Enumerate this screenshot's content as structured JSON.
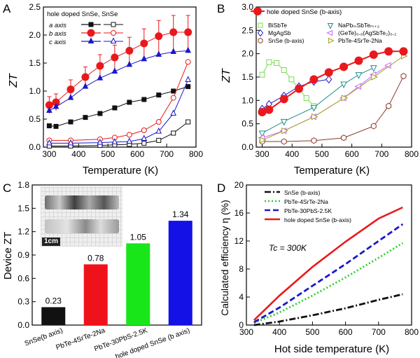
{
  "panels": {
    "A": {
      "letter": "A",
      "legend_title": "hole doped SnSe, SnSe",
      "legend_rows": [
        "a axis",
        "b axis",
        "c axis"
      ],
      "xlabel": "Temperature (K)",
      "ylabel": "ZT",
      "xticks": [
        "300",
        "400",
        "500",
        "600",
        "700",
        "800"
      ],
      "yticks": [
        "0.0",
        "0.5",
        "1.0",
        "1.5",
        "2.0",
        "2.5"
      ]
    },
    "B": {
      "letter": "B",
      "xlabel": "Temperature (K)",
      "ylabel": "ZT",
      "xticks": [
        "300",
        "400",
        "500",
        "600",
        "700",
        "800"
      ],
      "yticks": [
        "0.0",
        "0.5",
        "1.0",
        "1.5",
        "2.0",
        "2.5",
        "3.0"
      ],
      "legend": {
        "main": "hole doped SnSe (b-axis)",
        "items": [
          "BiSbTe",
          "NaPbₘSbTeₘ₊₂",
          "MgAgSb",
          "(GeTe)₀.₈(AgSbTe₂)₀.₂",
          "SnSe (b-axis)",
          "PbTe-4SrTe-2Na"
        ]
      }
    },
    "C": {
      "letter": "C",
      "ylabel": "Device ZT",
      "photo_scale": "1cm",
      "yticks": [
        "0.0",
        "0.3",
        "0.6",
        "0.9",
        "1.2",
        "1.5",
        "1.8"
      ]
    },
    "D": {
      "letter": "D",
      "xlabel": "Hot side temperature (K)",
      "ylabel": "Calculated efficiency η (%)",
      "annotation": "Tc = 300K",
      "xticks": [
        "300",
        "400",
        "500",
        "600",
        "700",
        "800"
      ],
      "yticks": [
        "0",
        "4",
        "8",
        "12",
        "16",
        "20"
      ]
    }
  },
  "colors": {
    "hole_doped_b": "#e8191c",
    "black": "#111111",
    "blue": "#1a18c8",
    "green": "#2bd12b",
    "bar_red": "#f0121a",
    "bar_green": "#19e619",
    "bar_blue": "#1411e6",
    "violet": "#cc66ff",
    "brown": "#8b3a2b",
    "olive": "#a0a020",
    "lightgreen": "#77dd55"
  },
  "chart_data": [
    {
      "panel": "A",
      "type": "line",
      "xlim": [
        280,
        800
      ],
      "ylim": [
        0,
        2.5
      ],
      "series": [
        {
          "name": "a axis (hole doped)",
          "marker": "filled-square",
          "color": "#111111",
          "x": [
            300,
            323,
            373,
            423,
            473,
            523,
            573,
            623,
            673,
            723,
            773
          ],
          "y": [
            0.38,
            0.37,
            0.45,
            0.53,
            0.6,
            0.7,
            0.8,
            0.85,
            0.93,
            1.0,
            1.08
          ]
        },
        {
          "name": "b axis (hole doped)",
          "marker": "filled-circle",
          "color": "#e8191c",
          "x": [
            300,
            323,
            373,
            423,
            473,
            523,
            573,
            623,
            673,
            723,
            773
          ],
          "y": [
            0.75,
            0.8,
            1.03,
            1.25,
            1.45,
            1.6,
            1.72,
            1.85,
            1.98,
            2.05,
            2.05
          ],
          "err": [
            0.15,
            0.15,
            0.17,
            0.18,
            0.2,
            0.22,
            0.24,
            0.26,
            0.28,
            0.3,
            0.3
          ]
        },
        {
          "name": "c axis (hole doped)",
          "marker": "filled-triangle",
          "color": "#1a18c8",
          "x": [
            300,
            323,
            373,
            423,
            473,
            523,
            573,
            623,
            673,
            723,
            773
          ],
          "y": [
            0.65,
            0.72,
            0.88,
            1.08,
            1.23,
            1.35,
            1.47,
            1.57,
            1.65,
            1.7,
            1.72
          ]
        },
        {
          "name": "a axis (SnSe)",
          "marker": "open-square",
          "color": "#111111",
          "x": [
            300,
            373,
            473,
            523,
            573,
            623,
            673,
            723,
            773
          ],
          "y": [
            0.02,
            0.02,
            0.03,
            0.04,
            0.05,
            0.07,
            0.12,
            0.25,
            0.45
          ]
        },
        {
          "name": "b axis (SnSe)",
          "marker": "open-circle",
          "color": "#e8191c",
          "x": [
            300,
            373,
            473,
            523,
            573,
            623,
            673,
            723,
            773
          ],
          "y": [
            0.12,
            0.12,
            0.14,
            0.17,
            0.22,
            0.3,
            0.45,
            0.88,
            1.52
          ]
        },
        {
          "name": "c axis (SnSe)",
          "marker": "open-triangle",
          "color": "#1a18c8",
          "x": [
            300,
            373,
            473,
            523,
            573,
            623,
            673,
            723,
            773
          ],
          "y": [
            0.07,
            0.07,
            0.08,
            0.09,
            0.1,
            0.15,
            0.28,
            0.6,
            1.2
          ]
        }
      ]
    },
    {
      "panel": "B",
      "type": "line",
      "xlim": [
        280,
        800
      ],
      "ylim": [
        0,
        3.0
      ],
      "series": [
        {
          "name": "hole doped SnSe (b-axis)",
          "marker": "filled-circle",
          "color": "#e8191c",
          "x": [
            300,
            323,
            373,
            423,
            473,
            523,
            573,
            623,
            673,
            723,
            773
          ],
          "y": [
            0.75,
            0.8,
            1.03,
            1.25,
            1.45,
            1.6,
            1.72,
            1.85,
            1.98,
            2.05,
            2.05
          ]
        },
        {
          "name": "BiSbTe",
          "marker": "open-square",
          "color": "#77dd55",
          "x": [
            300,
            323,
            348,
            373,
            398,
            423,
            448,
            473
          ],
          "y": [
            1.55,
            1.82,
            1.8,
            1.65,
            1.45,
            1.25,
            1.05,
            0.88
          ]
        },
        {
          "name": "NaPbmSbTem+2",
          "marker": "open-triangle-down",
          "color": "#1c8c8c",
          "x": [
            300,
            373,
            473,
            573,
            623,
            673
          ],
          "y": [
            0.3,
            0.55,
            0.85,
            1.35,
            1.55,
            1.7
          ]
        },
        {
          "name": "MgAgSb",
          "marker": "open-diamond",
          "color": "#1a18c8",
          "x": [
            300,
            323,
            373,
            423,
            473,
            523
          ],
          "y": [
            0.82,
            0.92,
            1.1,
            1.3,
            1.4,
            1.45
          ]
        },
        {
          "name": "(GeTe)0.8(AgSbTe2)0.2",
          "marker": "open-triangle-left",
          "color": "#cc66ff",
          "x": [
            300,
            373,
            473,
            573,
            623,
            673,
            723
          ],
          "y": [
            0.2,
            0.35,
            0.65,
            1.05,
            1.3,
            1.55,
            1.75
          ]
        },
        {
          "name": "SnSe (b-axis)",
          "marker": "open-hexagon",
          "color": "#8b3a2b",
          "x": [
            300,
            373,
            473,
            573,
            673,
            723,
            773
          ],
          "y": [
            0.12,
            0.12,
            0.14,
            0.2,
            0.45,
            0.88,
            1.52
          ]
        },
        {
          "name": "PbTe-4SrTe-2Na",
          "marker": "open-triangle-right",
          "color": "#a0a020",
          "x": [
            300,
            373,
            473,
            573,
            673,
            773
          ],
          "y": [
            0.15,
            0.35,
            0.65,
            1.05,
            1.5,
            1.95
          ]
        }
      ]
    },
    {
      "panel": "C",
      "type": "bar",
      "ylim": [
        0,
        1.8
      ],
      "categories": [
        "SnSe(b axis)",
        "PbTe-4SrTe-2Na",
        "PbTe-30PbS-2.5K",
        "hole doped SnSe (b axis)"
      ],
      "values": [
        0.23,
        0.78,
        1.05,
        1.34
      ],
      "value_labels": [
        "0.23",
        "0.78",
        "1.05",
        "1.34"
      ],
      "colors": [
        "#111111",
        "#f0121a",
        "#19e619",
        "#1411e6"
      ]
    },
    {
      "panel": "D",
      "type": "line",
      "xlim": [
        300,
        800
      ],
      "ylim": [
        0,
        20
      ],
      "series": [
        {
          "name": "SnSe (b-axis)",
          "style": "dashdot",
          "color": "#111111",
          "x": [
            323,
            400,
            500,
            600,
            700,
            773
          ],
          "y": [
            0.0,
            0.5,
            1.4,
            2.4,
            3.6,
            4.4
          ]
        },
        {
          "name": "PbTe-4SrTe-2Na",
          "style": "dotted",
          "color": "#2bd12b",
          "x": [
            323,
            400,
            500,
            600,
            700,
            773
          ],
          "y": [
            0.3,
            1.8,
            4.2,
            6.8,
            9.6,
            11.7
          ]
        },
        {
          "name": "PbTe-30PbS-2.5K",
          "style": "dashed",
          "color": "#1a18c8",
          "x": [
            323,
            400,
            500,
            600,
            700,
            773
          ],
          "y": [
            0.4,
            2.5,
            5.6,
            8.7,
            12.0,
            14.4
          ]
        },
        {
          "name": "hole doped SnSe (b-axis)",
          "style": "solid",
          "color": "#e8191c",
          "x": [
            323,
            400,
            500,
            600,
            700,
            773
          ],
          "y": [
            0.7,
            4.2,
            8.3,
            11.9,
            15.2,
            16.8
          ]
        }
      ]
    }
  ]
}
